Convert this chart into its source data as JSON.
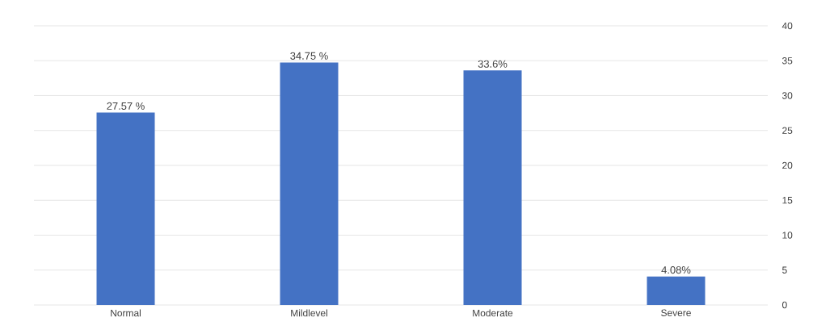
{
  "chart_data": {
    "type": "bar",
    "categories": [
      "Normal",
      "Mildlevel",
      "Moderate",
      "Severe"
    ],
    "values": [
      27.57,
      34.75,
      33.6,
      4.08
    ],
    "value_labels": [
      "27.57 %",
      "34.75 %",
      "33.6%",
      "4.08%"
    ],
    "color": "#4472c4",
    "ylim": [
      0,
      40
    ],
    "yticks": [
      0,
      5,
      10,
      15,
      20,
      25,
      30,
      35,
      40
    ],
    "grid": "y"
  }
}
